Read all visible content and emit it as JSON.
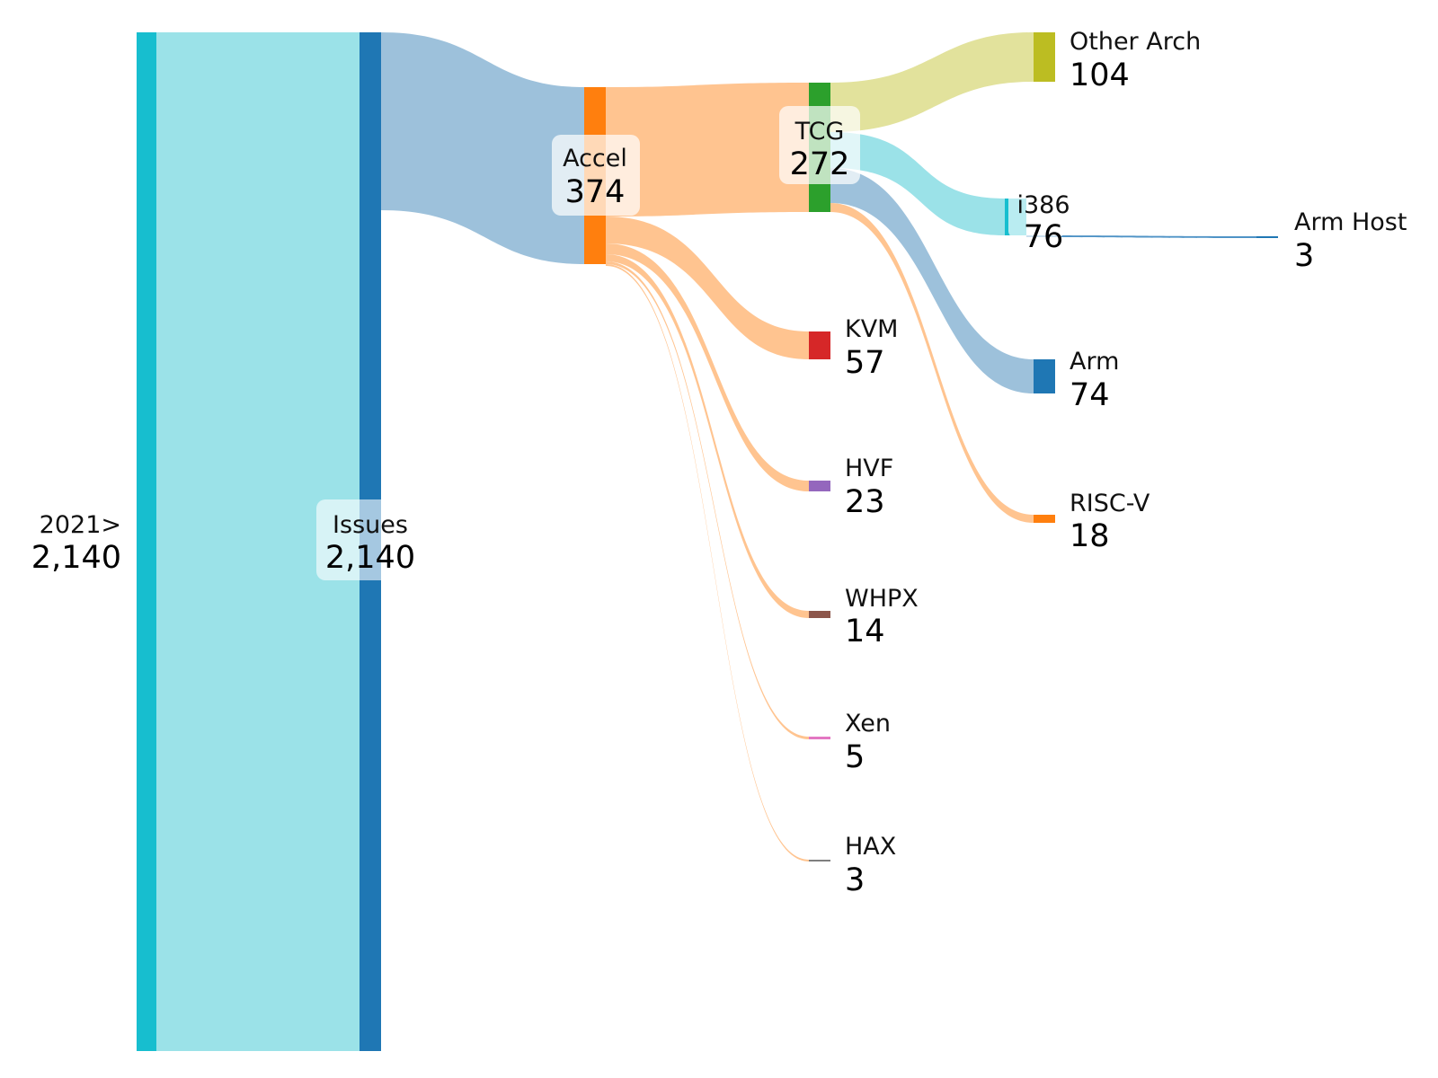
{
  "diagram": {
    "type": "sankey",
    "nodes": {
      "year": {
        "name": "2021>",
        "value": "2,140",
        "color": "#17becf"
      },
      "issues": {
        "name": "Issues",
        "value": "2,140",
        "color": "#1f77b4"
      },
      "accel": {
        "name": "Accel",
        "value": "374",
        "color": "#ff7f0e"
      },
      "tcg": {
        "name": "TCG",
        "value": "272",
        "color": "#2ca02c"
      },
      "kvm": {
        "name": "KVM",
        "value": "57",
        "color": "#d62728"
      },
      "hvf": {
        "name": "HVF",
        "value": "23",
        "color": "#9467bd"
      },
      "whpx": {
        "name": "WHPX",
        "value": "14",
        "color": "#8c564b"
      },
      "xen": {
        "name": "Xen",
        "value": "5",
        "color": "#e377c2"
      },
      "hax": {
        "name": "HAX",
        "value": "3",
        "color": "#7f7f7f"
      },
      "otherarch": {
        "name": "Other Arch",
        "value": "104",
        "color": "#bcbd22"
      },
      "i386": {
        "name": "i386",
        "value": "76",
        "color": "#17becf"
      },
      "arm": {
        "name": "Arm",
        "value": "74",
        "color": "#1f77b4"
      },
      "riscv": {
        "name": "RISC-V",
        "value": "18",
        "color": "#ff7f0e"
      },
      "armhost": {
        "name": "Arm Host",
        "value": "3",
        "color": "#1f77b4"
      }
    },
    "links": [
      {
        "source": "2021>",
        "target": "Issues",
        "value": 2140
      },
      {
        "source": "Issues",
        "target": "Accel",
        "value": 374
      },
      {
        "source": "Accel",
        "target": "TCG",
        "value": 272
      },
      {
        "source": "Accel",
        "target": "KVM",
        "value": 57
      },
      {
        "source": "Accel",
        "target": "HVF",
        "value": 23
      },
      {
        "source": "Accel",
        "target": "WHPX",
        "value": 14
      },
      {
        "source": "Accel",
        "target": "Xen",
        "value": 5
      },
      {
        "source": "Accel",
        "target": "HAX",
        "value": 3
      },
      {
        "source": "TCG",
        "target": "Other Arch",
        "value": 104
      },
      {
        "source": "TCG",
        "target": "i386",
        "value": 76
      },
      {
        "source": "TCG",
        "target": "Arm",
        "value": 74
      },
      {
        "source": "TCG",
        "target": "RISC-V",
        "value": 18
      },
      {
        "source": "i386",
        "target": "Arm Host",
        "value": 3
      }
    ]
  }
}
